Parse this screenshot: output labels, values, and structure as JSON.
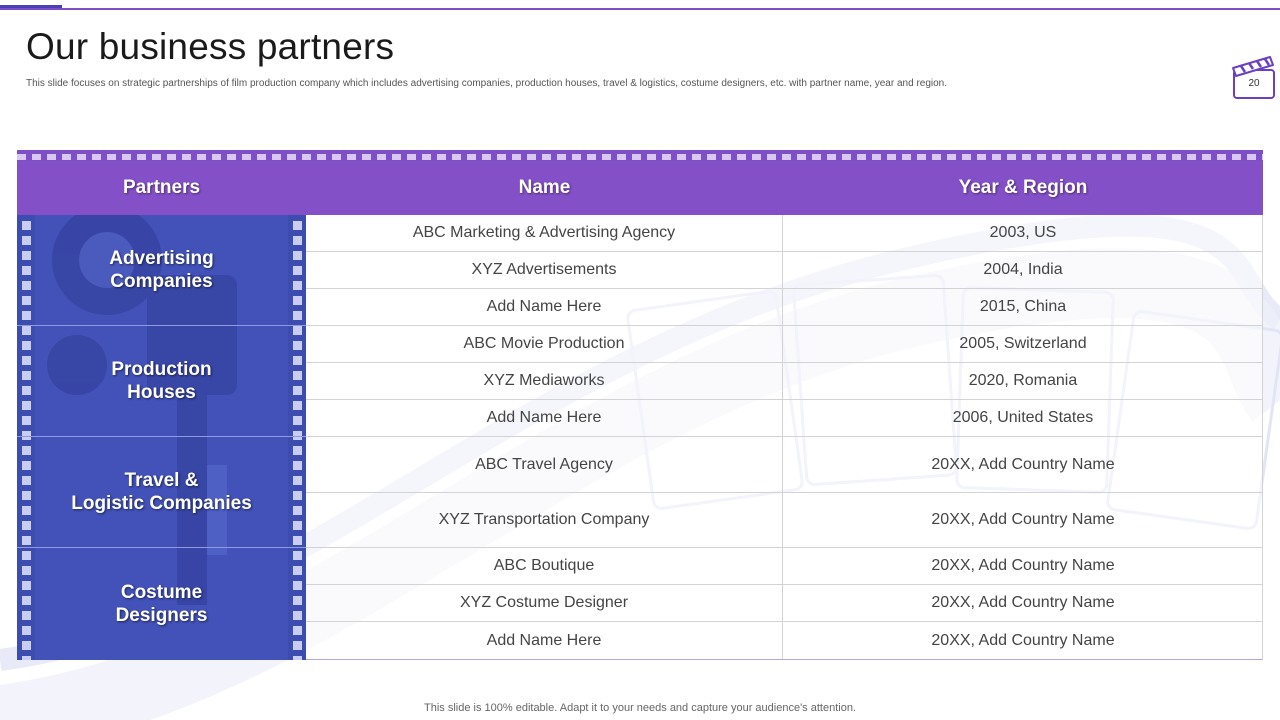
{
  "slide": {
    "title": "Our business partners",
    "subtitle": "This slide focuses on strategic partnerships of film production company which includes advertising companies, production houses, travel & logistics, costume designers, etc. with partner name, year and region.",
    "page_number": "20",
    "footer": "This slide is 100% editable. Adapt it to your needs and capture your audience's attention."
  },
  "colors": {
    "header": "#8450c8",
    "left_column": "#4051b5",
    "accent_line": "#7b4fc7"
  },
  "icons": {
    "page_badge": "clapperboard-icon",
    "background": "film-strip-decoration"
  },
  "table": {
    "headers": [
      "Partners",
      "Name",
      "Year & Region"
    ],
    "groups": [
      {
        "label": "Advertising\nCompanies",
        "rows": [
          {
            "name": "ABC Marketing & Advertising Agency",
            "year_region": "2003, US"
          },
          {
            "name": "XYZ  Advertisements",
            "year_region": "2004, India"
          },
          {
            "name": "Add Name Here",
            "year_region": "2015, China"
          }
        ]
      },
      {
        "label": "Production\nHouses",
        "rows": [
          {
            "name": "ABC Movie Production",
            "year_region": "2005, Switzerland"
          },
          {
            "name": "XYZ  Mediaworks",
            "year_region": "2020, Romania"
          },
          {
            "name": "Add Name Here",
            "year_region": "2006, United States"
          }
        ]
      },
      {
        "label": "Travel &\nLogistic Companies",
        "rows": [
          {
            "name": "ABC Travel Agency",
            "year_region": "20XX, Add Country Name"
          },
          {
            "name": "XYZ Transportation  Company",
            "year_region": "20XX, Add Country Name"
          }
        ]
      },
      {
        "label": "Costume\nDesigners",
        "rows": [
          {
            "name": "ABC Boutique",
            "year_region": "20XX, Add Country  Name"
          },
          {
            "name": "XYZ  Costume Designer",
            "year_region": "20XX, Add Country  Name"
          },
          {
            "name": "Add Name Here",
            "year_region": "20XX, Add Country  Name"
          }
        ]
      }
    ]
  }
}
